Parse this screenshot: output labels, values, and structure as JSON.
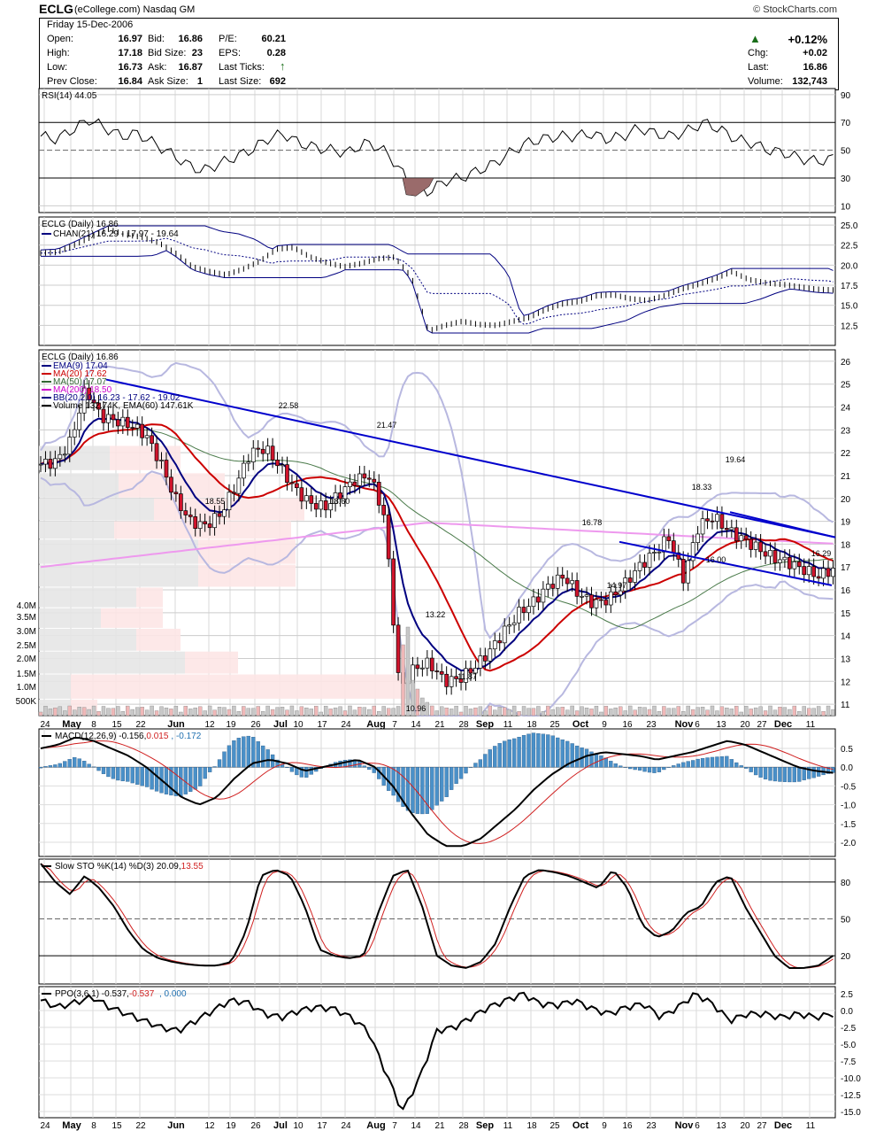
{
  "header": {
    "symbol": "ECLG",
    "company": "(eCollege.com) Nasdaq GM",
    "credit": "© StockCharts.com",
    "date": "Friday 15-Dec-2006"
  },
  "quote": {
    "open_label": "Open:",
    "open": "16.97",
    "high_label": "High:",
    "high": "17.18",
    "low_label": "Low:",
    "low": "16.73",
    "prevclose_label": "Prev Close:",
    "prevclose": "16.84",
    "bid_label": "Bid:",
    "bid": "16.86",
    "bidsize_label": "Bid Size:",
    "bidsize": "23",
    "ask_label": "Ask:",
    "ask": "16.87",
    "asksize_label": "Ask Size:",
    "asksize": "1",
    "pe_label": "P/E:",
    "pe": "60.21",
    "eps_label": "EPS:",
    "eps": "0.28",
    "lastticks_label": "Last Ticks:",
    "lastsize_label": "Last Size:",
    "lastsize": "692",
    "pct": "+0.12%",
    "chg_label": "Chg:",
    "chg": "+0.02",
    "last_label": "Last:",
    "last": "16.86",
    "volume_label": "Volume:",
    "volume": "132,743",
    "up_color": "#1a6e1a"
  },
  "panels": {
    "rsi": {
      "title": "RSI(14) 44.05",
      "ticks": [
        "90",
        "70",
        "50",
        "30",
        "10"
      ]
    },
    "chan": {
      "title": "ECLG (Daily) 16.86",
      "legend": [
        "CHAN(21) 16.29 - 17.97 - 19.64"
      ],
      "ticks": [
        "25.0",
        "22.5",
        "20.0",
        "17.5",
        "15.0",
        "12.5"
      ]
    },
    "main": {
      "title": "ECLG (Daily) 16.86",
      "legend": [
        {
          "text": "EMA(9) 17.04",
          "color": "#000080"
        },
        {
          "text": "MA(20) 17.62",
          "color": "#cc0000"
        },
        {
          "text": "MA(50) 17.07",
          "color": "#336633"
        },
        {
          "text": "MA(200) 18.50",
          "color": "#cc00cc"
        },
        {
          "text": "BB(20,2.0) 16.23 - 17.62 - 19.02",
          "color": "#000080"
        },
        {
          "text": "Volume 132.74K, EMA(60) 147.61K",
          "color": "#000"
        }
      ],
      "ticks": [
        "26",
        "25",
        "24",
        "23",
        "22",
        "21",
        "20",
        "19",
        "18",
        "17",
        "16",
        "15",
        "14",
        "13",
        "12",
        "11"
      ],
      "vol_ticks": [
        "4.0M",
        "3.5M",
        "3.0M",
        "2.5M",
        "2.0M",
        "1.5M",
        "1.0M",
        "500K"
      ],
      "annotations": [
        "22.58",
        "21.47",
        "18.55",
        "18.60",
        "19.64",
        "18.33",
        "16.78",
        "16.00",
        "14.97",
        "13.22",
        "11.87",
        "10.96",
        "16.29"
      ]
    },
    "macd": {
      "title": "MACD(12,26,9) -0.156, ",
      "v2": "0.015",
      "v3": "-0.172",
      "ticks": [
        "0.5",
        "0.0",
        "-0.5",
        "-1.0",
        "-1.5",
        "-2.0"
      ]
    },
    "sto": {
      "title": "Slow STO %K(14) %D(3) 20.09, ",
      "v2": "13.55",
      "ticks": [
        "80",
        "50",
        "20"
      ]
    },
    "ppo": {
      "title": "PPO(3,6,1) -0.537, ",
      "v2": "-0.537",
      "v3": "0.000",
      "ticks": [
        "2.5",
        "0.0",
        "-2.5",
        "-5.0",
        "-7.5",
        "-10.0",
        "-12.5",
        "-15.0"
      ]
    }
  },
  "xaxis": {
    "labels": [
      "24",
      "May",
      "8",
      "15",
      "22",
      "Jun",
      "12",
      "19",
      "26",
      "Jul",
      "10",
      "17",
      "24",
      "Aug",
      "7",
      "14",
      "21",
      "28",
      "Sep",
      "11",
      "18",
      "25",
      "Oct",
      "9",
      "16",
      "23",
      "Nov",
      "6",
      "13",
      "20",
      "27",
      "Dec",
      "11"
    ],
    "bold": [
      "May",
      "Jun",
      "Jul",
      "Aug",
      "Sep",
      "Oct",
      "Nov",
      "Dec"
    ]
  },
  "chart_data": {
    "type": "candlestick",
    "symbol": "ECLG",
    "period": "Daily",
    "last_close": 16.86,
    "price_annotations": [
      {
        "label": "22.58",
        "value": 22.58,
        "date": "Jul 5"
      },
      {
        "label": "21.47",
        "value": 21.47,
        "date": "Aug 4"
      },
      {
        "label": "18.55",
        "value": 18.55,
        "date": "Jun 14"
      },
      {
        "label": "18.60",
        "value": 18.6,
        "date": "Jul 24"
      },
      {
        "label": "13.22",
        "value": 13.22,
        "date": "Aug 16"
      },
      {
        "label": "11.87",
        "value": 11.87,
        "date": "Aug 28"
      },
      {
        "label": "10.96",
        "value": 10.96,
        "date": "Aug 14"
      },
      {
        "label": "16.78",
        "value": 16.78,
        "date": "Oct 4"
      },
      {
        "label": "14.97",
        "value": 14.97,
        "date": "Oct 13"
      },
      {
        "label": "18.33",
        "value": 18.33,
        "date": "Nov 8"
      },
      {
        "label": "16.00",
        "value": 16.0,
        "date": "Nov 10"
      },
      {
        "label": "19.64",
        "value": 19.64,
        "date": "Nov 15"
      },
      {
        "label": "16.29",
        "value": 16.29,
        "date": "Dec 14"
      }
    ],
    "indicators": {
      "EMA(9)": 17.04,
      "MA(20)": 17.62,
      "MA(50)": 17.07,
      "MA(200)": 18.5,
      "BB(20,2.0)": [
        16.23,
        17.62,
        19.02
      ],
      "Volume": "132.74K",
      "Volume EMA(60)": "147.61K",
      "CHAN(21)": [
        16.29,
        17.97,
        19.64
      ],
      "RSI(14)": 44.05,
      "MACD(12,26,9)": [
        -0.156,
        0.015,
        -0.172
      ],
      "Slow STO %K(14) %D(3)": [
        20.09,
        13.55
      ],
      "PPO(3,6,1)": [
        -0.537,
        -0.537,
        0.0
      ]
    },
    "ylim_price": [
      10.5,
      26.5
    ],
    "close_series": [
      {
        "d": "Apr 24",
        "c": 21.5
      },
      {
        "d": "May 1",
        "c": 21.4
      },
      {
        "d": "May 8",
        "c": 22.3
      },
      {
        "d": "May 10",
        "c": 24.8
      },
      {
        "d": "May 15",
        "c": 23.6
      },
      {
        "d": "May 22",
        "c": 23.4
      },
      {
        "d": "May 30",
        "c": 22.8
      },
      {
        "d": "Jun 5",
        "c": 21.5
      },
      {
        "d": "Jun 12",
        "c": 19.0
      },
      {
        "d": "Jun 19",
        "c": 18.8
      },
      {
        "d": "Jun 26",
        "c": 19.8
      },
      {
        "d": "Jul 5",
        "c": 22.0
      },
      {
        "d": "Jul 10",
        "c": 21.6
      },
      {
        "d": "Jul 17",
        "c": 20.4
      },
      {
        "d": "Jul 24",
        "c": 19.6
      },
      {
        "d": "Jul 31",
        "c": 20.6
      },
      {
        "d": "Aug 4",
        "c": 20.9
      },
      {
        "d": "Aug 9",
        "c": 18.5
      },
      {
        "d": "Aug 11",
        "c": 11.5
      },
      {
        "d": "Aug 16",
        "c": 13.0
      },
      {
        "d": "Aug 21",
        "c": 12.3
      },
      {
        "d": "Aug 28",
        "c": 12.0
      },
      {
        "d": "Sep 5",
        "c": 13.0
      },
      {
        "d": "Sep 11",
        "c": 13.7
      },
      {
        "d": "Sep 18",
        "c": 14.8
      },
      {
        "d": "Sep 25",
        "c": 15.3
      },
      {
        "d": "Oct 2",
        "c": 16.2
      },
      {
        "d": "Oct 9",
        "c": 16.3
      },
      {
        "d": "Oct 16",
        "c": 15.6
      },
      {
        "d": "Oct 23",
        "c": 15.9
      },
      {
        "d": "Oct 30",
        "c": 17.0
      },
      {
        "d": "Nov 6",
        "c": 17.9
      },
      {
        "d": "Nov 13",
        "c": 18.8
      },
      {
        "d": "Nov 20",
        "c": 18.3
      },
      {
        "d": "Nov 27",
        "c": 17.6
      },
      {
        "d": "Dec 4",
        "c": 17.3
      },
      {
        "d": "Dec 11",
        "c": 16.9
      },
      {
        "d": "Dec 15",
        "c": 16.86
      }
    ]
  }
}
